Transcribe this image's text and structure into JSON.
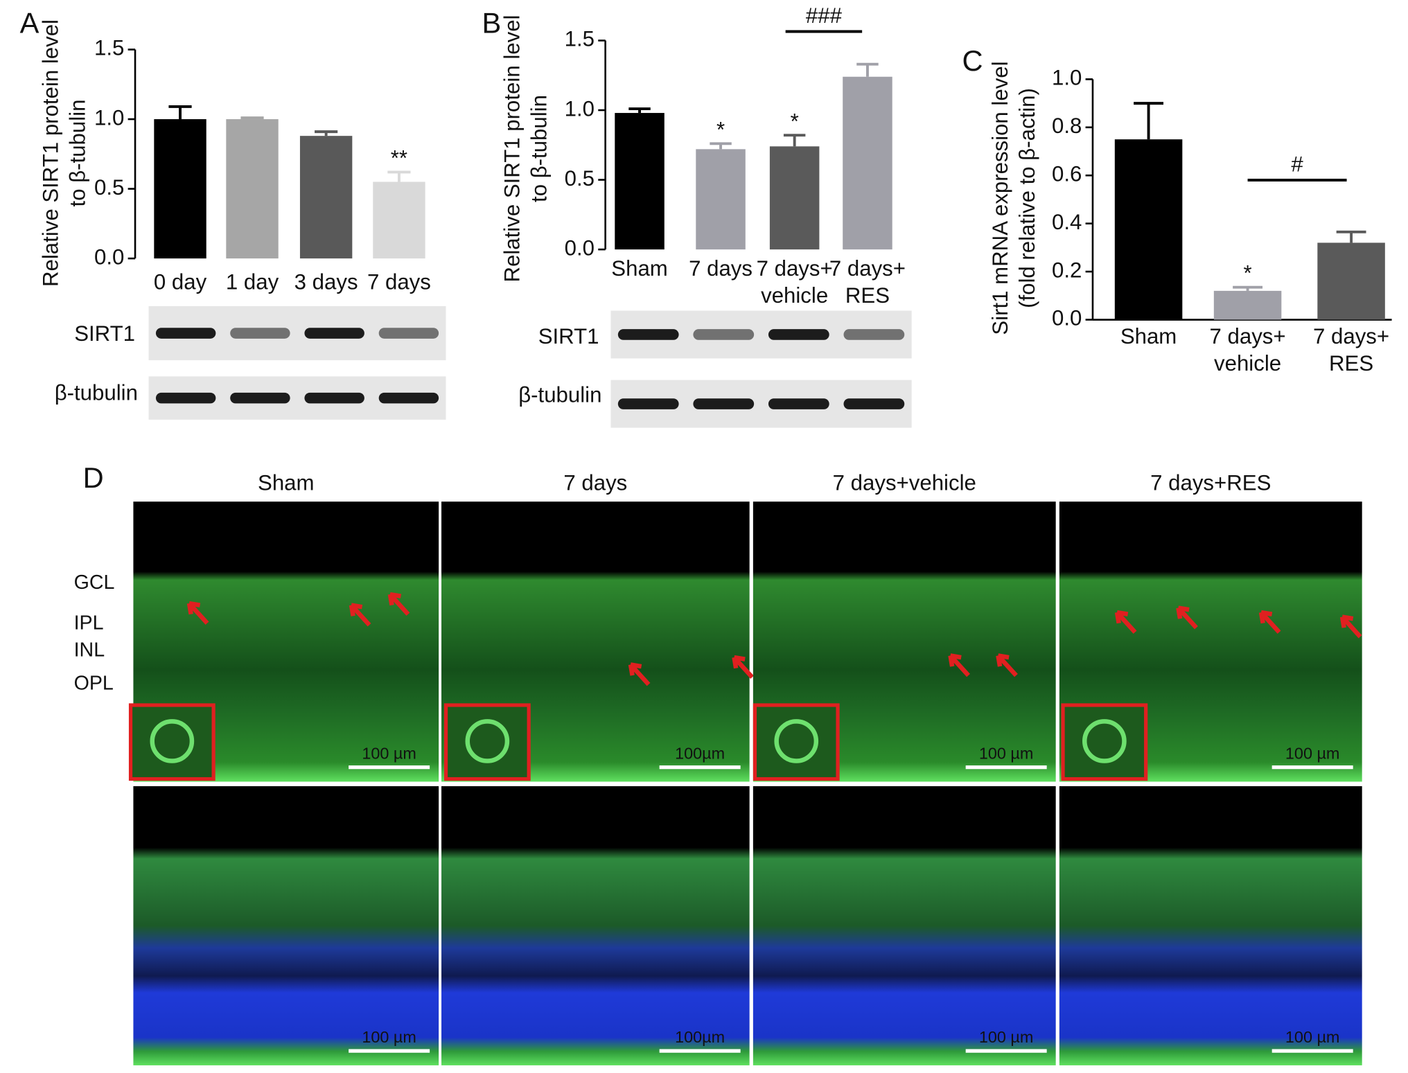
{
  "chart_data": [
    {
      "type": "bar",
      "panel": "A",
      "ylabel": [
        "Relative SIRT1 protein level",
        "to β-tubulin"
      ],
      "categories": [
        [
          "0 day"
        ],
        [
          "1 day"
        ],
        [
          "3 days"
        ],
        [
          "7 days"
        ]
      ],
      "values": [
        1.0,
        1.0,
        0.88,
        0.55
      ],
      "errors": [
        0.09,
        0.01,
        0.03,
        0.07
      ],
      "colors": [
        "#000000",
        "#a6a6a6",
        "#595959",
        "#d9d9d9"
      ],
      "significance": [
        null,
        null,
        null,
        "**"
      ],
      "ylim": [
        0,
        1.5
      ],
      "yticks": [
        {
          "value": 0,
          "label": "0.0"
        },
        0.5,
        {
          "value": 1,
          "label": "1.0"
        },
        1.5
      ],
      "blot_labels": [
        "SIRT1",
        "β-tubulin"
      ]
    },
    {
      "type": "bar",
      "panel": "B",
      "ylabel": [
        "Relative SIRT1 protein level",
        "to β-tubulin"
      ],
      "categories": [
        [
          "Sham"
        ],
        [
          "7 days"
        ],
        [
          "7 days+",
          "vehicle"
        ],
        [
          "7 days+",
          "RES"
        ]
      ],
      "values": [
        0.98,
        0.72,
        0.74,
        1.24
      ],
      "errors": [
        0.03,
        0.04,
        0.08,
        0.09
      ],
      "colors": [
        "#000000",
        "#a0a0a8",
        "#5a5a5a",
        "#a0a0a8"
      ],
      "significance": [
        null,
        "*",
        "*",
        null
      ],
      "comparison_label": "###",
      "ylim": [
        0,
        1.5
      ],
      "yticks": [
        {
          "value": 0,
          "label": "0.0"
        },
        0.5,
        {
          "value": 1,
          "label": "1.0"
        },
        1.5
      ],
      "blot_labels": [
        "SIRT1",
        "β-tubulin"
      ]
    },
    {
      "type": "bar",
      "panel": "C",
      "ylabel": [
        "Sirt1 mRNA expression level",
        "(fold relative to β-actin)"
      ],
      "categories": [
        [
          "Sham"
        ],
        [
          "7 days+",
          "vehicle"
        ],
        [
          "7 days+",
          "RES"
        ]
      ],
      "values": [
        0.75,
        0.12,
        0.32
      ],
      "errors": [
        0.15,
        0.015,
        0.045
      ],
      "colors": [
        "#000000",
        "#a0a0a8",
        "#5a5a5a"
      ],
      "significance": [
        null,
        "*",
        null
      ],
      "comparison_label": "#",
      "ylim": [
        0,
        1.0
      ],
      "yticks": [
        {
          "value": 0,
          "label": "0.0"
        },
        0.2,
        0.4,
        0.6,
        0.8,
        {
          "value": 1,
          "label": "1.0"
        }
      ]
    }
  ],
  "microscopy": {
    "panel": "D",
    "columns": [
      "Sham",
      "7 days",
      "7 days+vehicle",
      "7 days+RES"
    ],
    "layers": [
      "GCL",
      "IPL",
      "INL",
      "OPL"
    ],
    "scale_bars": [
      [
        "100 µm",
        "100µm",
        "100 µm",
        "100 µm"
      ],
      [
        "100 µm",
        "100µm",
        "100 µm",
        "100 µm"
      ]
    ]
  }
}
